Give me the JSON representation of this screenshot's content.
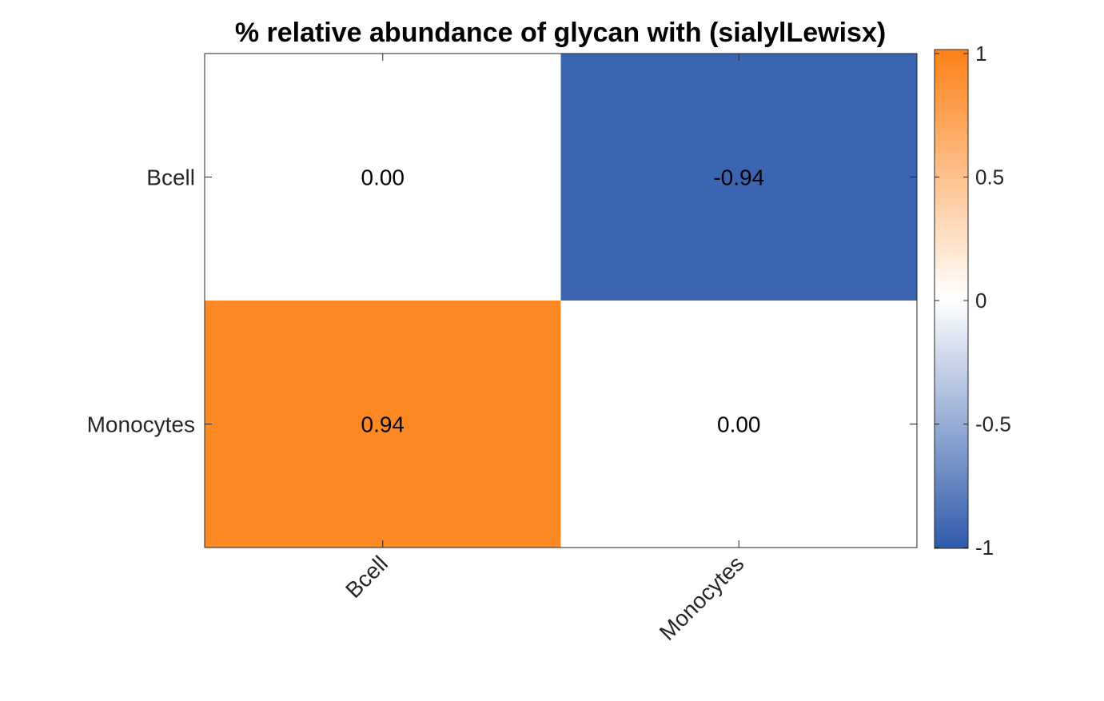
{
  "chart_data": {
    "type": "heatmap",
    "title": "% relative abundance of glycan with (sialylLewisx)",
    "row_labels": [
      "Bcell",
      "Monocytes"
    ],
    "col_labels": [
      "Bcell",
      "Monocytes"
    ],
    "values": [
      [
        0.0,
        -0.94
      ],
      [
        0.94,
        0.0
      ]
    ],
    "cell_text": [
      [
        "0.00",
        "-0.94"
      ],
      [
        "0.94",
        "0.00"
      ]
    ],
    "color_range": [
      -1,
      1
    ],
    "colorbar_ticks": [
      "-1",
      "-0.5",
      "0",
      "0.5",
      "1"
    ],
    "colorbar_tick_values": [
      -1,
      -0.5,
      0,
      0.5,
      1
    ],
    "colors": {
      "negative": "#2f5aac",
      "zero": "#ffffff",
      "positive": "#fd8117"
    },
    "xlabel": "",
    "ylabel": "",
    "grid": false
  }
}
